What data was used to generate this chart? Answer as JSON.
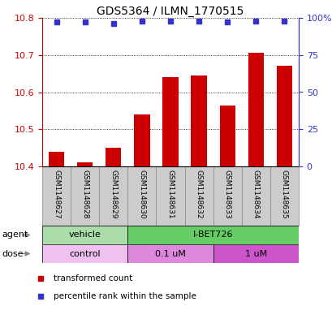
{
  "title": "GDS5364 / ILMN_1770515",
  "samples": [
    "GSM1148627",
    "GSM1148628",
    "GSM1148629",
    "GSM1148630",
    "GSM1148631",
    "GSM1148632",
    "GSM1148633",
    "GSM1148634",
    "GSM1148635"
  ],
  "transformed_counts": [
    10.44,
    10.41,
    10.45,
    10.54,
    10.64,
    10.645,
    10.565,
    10.705,
    10.67
  ],
  "percentile_ranks": [
    97,
    97,
    96,
    98,
    98,
    98,
    97,
    98,
    98
  ],
  "ylim_left": [
    10.4,
    10.8
  ],
  "ylim_right": [
    0,
    100
  ],
  "yticks_left": [
    10.4,
    10.5,
    10.6,
    10.7,
    10.8
  ],
  "yticks_right": [
    0,
    25,
    50,
    75,
    100
  ],
  "bar_color": "#cc0000",
  "dot_color": "#3333cc",
  "bar_bottom": 10.4,
  "agent_labels": [
    {
      "text": "vehicle",
      "start": 0,
      "end": 3,
      "color": "#aaddaa"
    },
    {
      "text": "I-BET726",
      "start": 3,
      "end": 9,
      "color": "#66cc66"
    }
  ],
  "dose_labels": [
    {
      "text": "control",
      "start": 0,
      "end": 3,
      "color": "#f0c0f0"
    },
    {
      "text": "0.1 uM",
      "start": 3,
      "end": 6,
      "color": "#dd88dd"
    },
    {
      "text": "1 uM",
      "start": 6,
      "end": 9,
      "color": "#cc55cc"
    }
  ],
  "legend_items": [
    {
      "label": "transformed count",
      "color": "#cc0000"
    },
    {
      "label": "percentile rank within the sample",
      "color": "#3333cc"
    }
  ],
  "sample_box_color": "#cccccc",
  "sample_box_edge": "#888888"
}
